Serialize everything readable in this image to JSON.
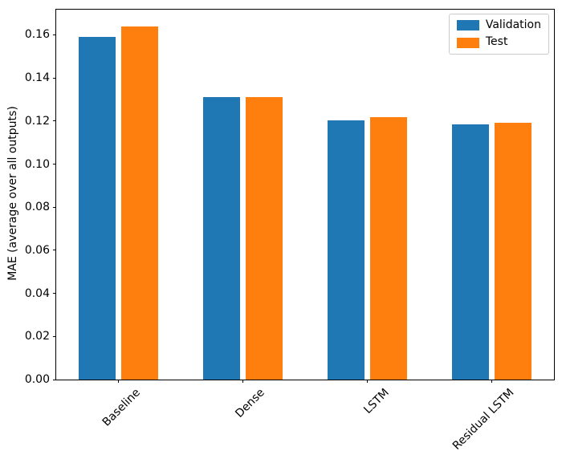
{
  "chart_data": {
    "type": "bar",
    "categories": [
      "Baseline",
      "Dense",
      "LSTM",
      "Residual LSTM"
    ],
    "series": [
      {
        "name": "Validation",
        "color": "#1f77b4",
        "values": [
          0.159,
          0.131,
          0.1202,
          0.1184
        ]
      },
      {
        "name": "Test",
        "color": "#ff7f0e",
        "values": [
          0.164,
          0.1312,
          0.1219,
          0.1193
        ]
      }
    ],
    "title": "",
    "xlabel": "",
    "ylabel": "MAE (average over all outputs)",
    "yticks": [
      "0.00",
      "0.02",
      "0.04",
      "0.06",
      "0.08",
      "0.10",
      "0.12",
      "0.14",
      "0.16"
    ],
    "ylim": [
      0,
      0.1717
    ],
    "grid": false,
    "legend_position": "upper right",
    "bar_width_units": 0.3,
    "bar_offset_units": 0.17,
    "xtick_label_rotation_deg": 45
  }
}
